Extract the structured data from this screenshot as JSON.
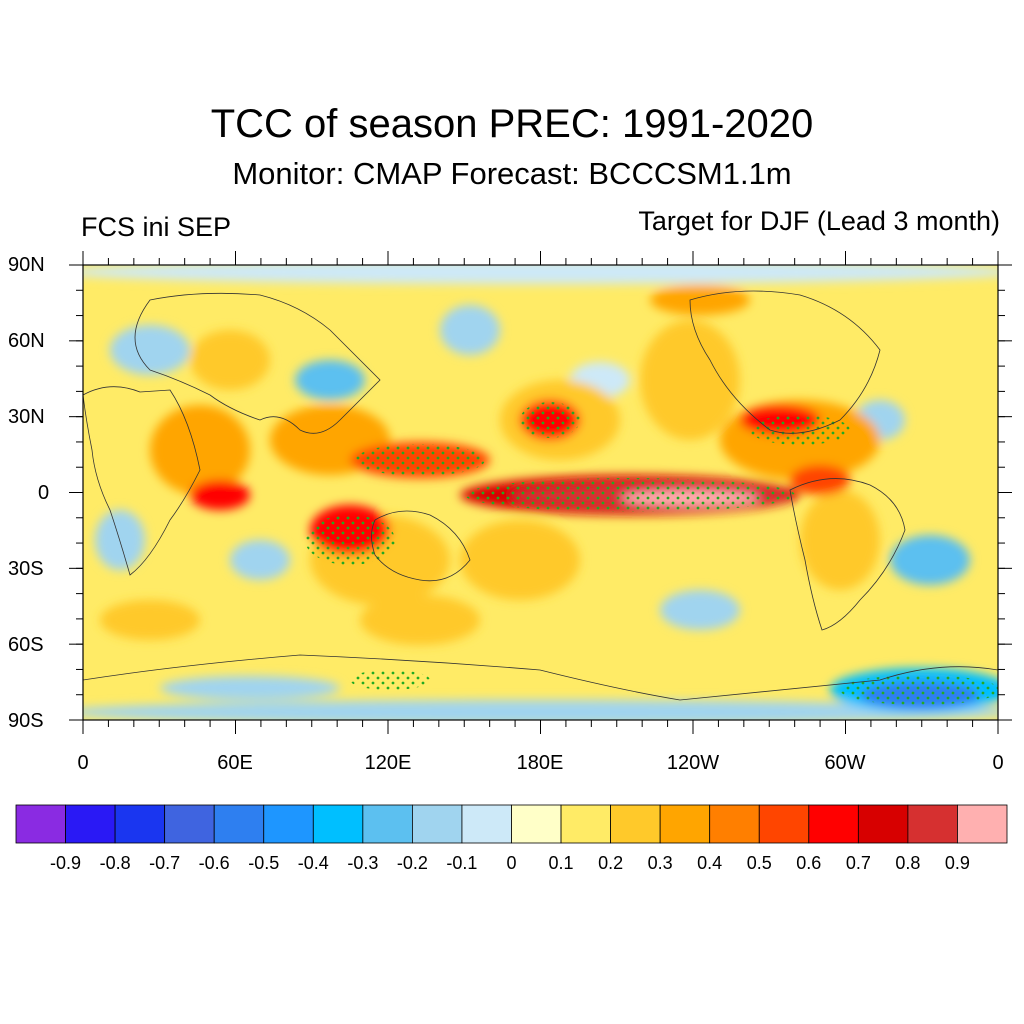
{
  "title": "TCC of season PREC: 1991-2020",
  "subtitle": "Monitor: CMAP   Forecast: BCCCSM1.1m",
  "left_label": "FCS ini SEP",
  "right_label": "Target for DJF (Lead 3 month)",
  "lat_labels": [
    "90N",
    "60N",
    "30N",
    "0",
    "30S",
    "60S",
    "90S"
  ],
  "lon_labels": [
    "0",
    "60E",
    "120E",
    "180E",
    "120W",
    "60W",
    "0"
  ],
  "colorbar": {
    "labels": [
      "-0.9",
      "-0.8",
      "-0.7",
      "-0.6",
      "-0.5",
      "-0.4",
      "-0.3",
      "-0.2",
      "-0.1",
      "0",
      "0.1",
      "0.2",
      "0.3",
      "0.4",
      "0.5",
      "0.6",
      "0.7",
      "0.8",
      "0.9"
    ],
    "colors": [
      "#8a2be2",
      "#2a19f5",
      "#1a36f0",
      "#3f64e0",
      "#2e7ff0",
      "#1e96ff",
      "#00bfff",
      "#5cc0f0",
      "#a0d4ef",
      "#cde9f8",
      "#ffffc8",
      "#ffeb66",
      "#ffc92a",
      "#ffa500",
      "#ff7f00",
      "#ff4500",
      "#ff0000",
      "#d70000",
      "#d63030",
      "#ffb0b0"
    ]
  },
  "map": {
    "colors": {
      "background": "#ffeb66",
      "ocean_frame": "#cde9f8",
      "stipple": "#22aa22",
      "coast": "#333333"
    }
  }
}
